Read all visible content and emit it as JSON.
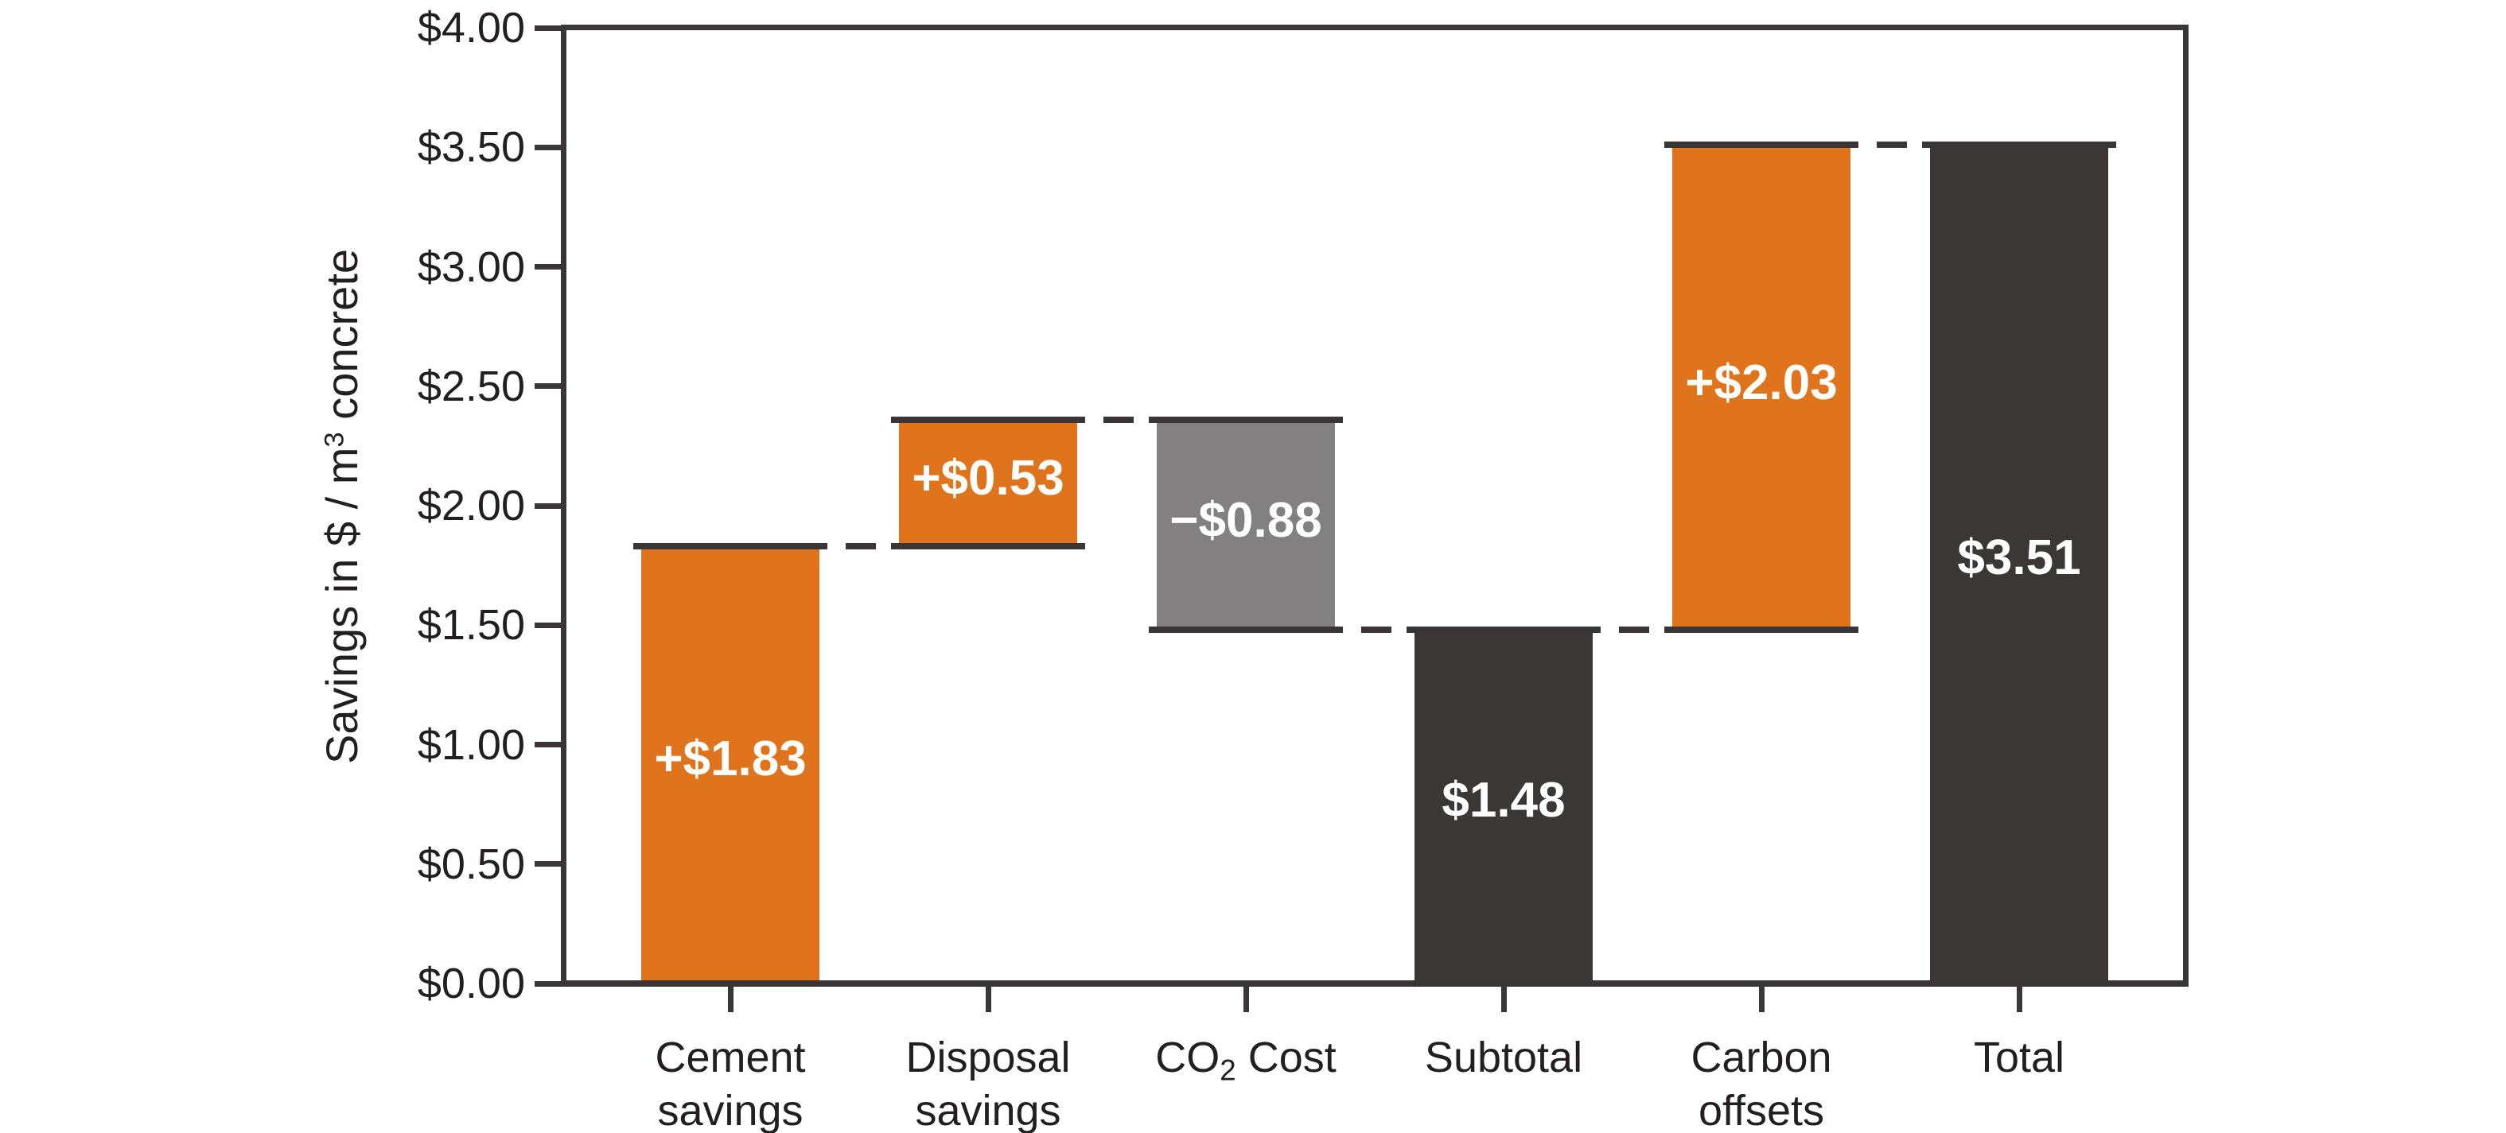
{
  "chart_data": {
    "type": "bar",
    "subtype": "waterfall",
    "title": "",
    "ylabel": "Savings in $ / m³ concrete",
    "ylabel_segments": [
      {
        "text": "Savings in $ / m"
      },
      {
        "text": "3",
        "sup": true
      },
      {
        "text": " concrete"
      }
    ],
    "ylim": [
      0.0,
      4.0
    ],
    "ytick_step": 0.5,
    "ytick_labels": [
      "$0.00",
      "$0.50",
      "$1.00",
      "$1.50",
      "$2.00",
      "$2.50",
      "$3.00",
      "$3.50",
      "$4.00"
    ],
    "grid": false,
    "legend": "none",
    "categories": [
      "Cement savings",
      "Disposal savings",
      "CO₂ Cost",
      "Subtotal",
      "Carbon offsets",
      "Total"
    ],
    "category_label_lines": [
      [
        [
          {
            "text": "Cement"
          }
        ],
        [
          {
            "text": "savings"
          }
        ]
      ],
      [
        [
          {
            "text": "Disposal"
          }
        ],
        [
          {
            "text": "savings"
          }
        ]
      ],
      [
        [
          {
            "text": "CO"
          },
          {
            "text": "2",
            "sub": true
          },
          {
            "text": " Cost"
          }
        ]
      ],
      [
        [
          {
            "text": "Subtotal"
          }
        ]
      ],
      [
        [
          {
            "text": "Carbon"
          }
        ],
        [
          {
            "text": "offsets"
          }
        ]
      ],
      [
        [
          {
            "text": "Total"
          }
        ]
      ]
    ],
    "bars": [
      {
        "category": "Cement savings",
        "start": 0.0,
        "end": 1.83,
        "value": 1.83,
        "label": "+$1.83",
        "role": "increase"
      },
      {
        "category": "Disposal savings",
        "start": 1.83,
        "end": 2.36,
        "value": 0.53,
        "label": "+$0.53",
        "role": "increase"
      },
      {
        "category": "CO₂ Cost",
        "start": 2.36,
        "end": 1.48,
        "value": -0.88,
        "label": "−$0.88",
        "role": "decrease"
      },
      {
        "category": "Subtotal",
        "start": 0.0,
        "end": 1.48,
        "value": 1.48,
        "label": "$1.48",
        "role": "subtotal"
      },
      {
        "category": "Carbon offsets",
        "start": 1.48,
        "end": 3.51,
        "value": 2.03,
        "label": "+$2.03",
        "role": "increase"
      },
      {
        "category": "Total",
        "start": 0.0,
        "end": 3.51,
        "value": 3.51,
        "label": "$3.51",
        "role": "total"
      }
    ],
    "colors": {
      "increase": "#E0741C",
      "decrease": "#828080",
      "total": "#3B3737",
      "axis": "#3A3637",
      "tick_text": "#231F20",
      "bar_label_text": "#FFFFFF",
      "background": "#FFFFFF"
    }
  }
}
